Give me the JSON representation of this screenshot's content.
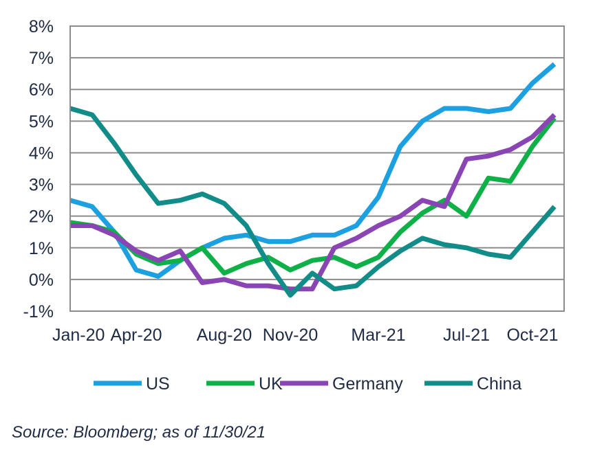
{
  "chart_data": {
    "type": "line",
    "title": "",
    "xlabel": "",
    "ylabel": "",
    "x": [
      "Jan-20",
      "Feb-20",
      "Mar-20",
      "Apr-20",
      "May-20",
      "Jun-20",
      "Jul-20",
      "Aug-20",
      "Sep-20",
      "Oct-20",
      "Nov-20",
      "Dec-20",
      "Jan-21",
      "Feb-21",
      "Mar-21",
      "Apr-21",
      "May-21",
      "Jun-21",
      "Jul-21",
      "Aug-21",
      "Sep-21",
      "Oct-21",
      "Nov-21"
    ],
    "x_tick_labels": [
      "Jan-20",
      "Apr-20",
      "Aug-20",
      "Nov-20",
      "Mar-21",
      "Jul-21",
      "Oct-21"
    ],
    "ylim": [
      -1,
      8
    ],
    "y_ticks": [
      -1,
      0,
      1,
      2,
      3,
      4,
      5,
      6,
      7,
      8
    ],
    "y_tick_labels": [
      "-1%",
      "0%",
      "1%",
      "2%",
      "3%",
      "4%",
      "5%",
      "6%",
      "7%",
      "8%"
    ],
    "grid": true,
    "legend_position": "bottom",
    "series": [
      {
        "name": "US",
        "color": "#1ca0e0",
        "values": [
          2.5,
          2.3,
          1.5,
          0.3,
          0.1,
          0.6,
          1.0,
          1.3,
          1.4,
          1.2,
          1.2,
          1.4,
          1.4,
          1.7,
          2.6,
          4.2,
          5.0,
          5.4,
          5.4,
          5.3,
          5.4,
          6.2,
          6.8
        ]
      },
      {
        "name": "UK",
        "color": "#10b048",
        "values": [
          1.8,
          1.7,
          1.5,
          0.8,
          0.5,
          0.6,
          1.0,
          0.2,
          0.5,
          0.7,
          0.3,
          0.6,
          0.7,
          0.4,
          0.7,
          1.5,
          2.1,
          2.5,
          2.0,
          3.2,
          3.1,
          4.2,
          5.1
        ]
      },
      {
        "name": "Germany",
        "color": "#8a45b5",
        "values": [
          1.7,
          1.7,
          1.4,
          0.9,
          0.6,
          0.9,
          -0.1,
          0.0,
          -0.2,
          -0.2,
          -0.3,
          -0.3,
          1.0,
          1.3,
          1.7,
          2.0,
          2.5,
          2.3,
          3.8,
          3.9,
          4.1,
          4.5,
          5.2
        ]
      },
      {
        "name": "China",
        "color": "#118c88",
        "values": [
          5.4,
          5.2,
          4.3,
          3.3,
          2.4,
          2.5,
          2.7,
          2.4,
          1.7,
          0.5,
          -0.5,
          0.2,
          -0.3,
          -0.2,
          0.4,
          0.9,
          1.3,
          1.1,
          1.0,
          0.8,
          0.7,
          1.5,
          2.3
        ]
      }
    ]
  },
  "source_note": "Source: Bloomberg; as of 11/30/21"
}
